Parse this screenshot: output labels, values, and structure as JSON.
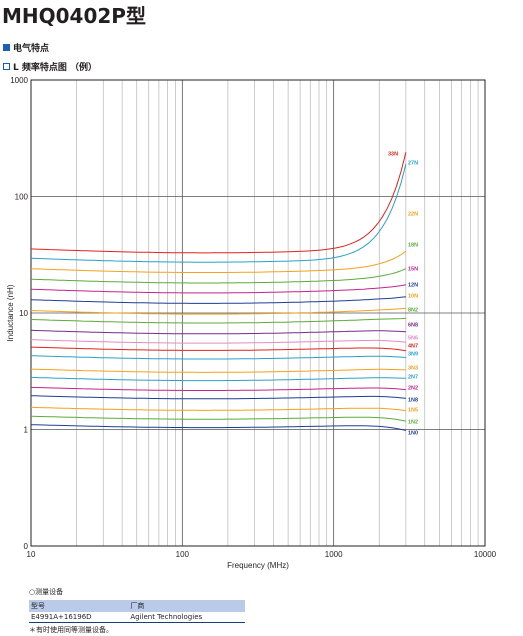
{
  "page": {
    "title": "MHQ0402P型",
    "section_electrical": "电气特点",
    "section_freq": "L 频率特点图 （例）"
  },
  "measurement": {
    "heading": "○测量设备",
    "col_model": "型号",
    "col_maker": "厂商",
    "model": "E4991A+16196D",
    "maker": "Agilent Technologies",
    "note": "＊有时使用同等测量设备。"
  },
  "chart_data": {
    "type": "line",
    "xlabel": "Frequency (MHz)",
    "ylabel": "Inductance (nH)",
    "xscale": "log",
    "yscale": "log",
    "xlim": [
      10,
      10000
    ],
    "ylim": [
      0,
      1000
    ],
    "xticks": [
      "10",
      "100",
      "1000",
      "10000"
    ],
    "yticks": [
      "0",
      "1",
      "10",
      "100",
      "1000"
    ],
    "grid": true,
    "series": [
      {
        "name": "1N0",
        "color": "#1e3f94",
        "base": 1.1,
        "srf": 10000,
        "end": 0.98
      },
      {
        "name": "1N2",
        "color": "#5aab3a",
        "base": 1.3,
        "srf": 10000,
        "end": 1.18
      },
      {
        "name": "1N5",
        "color": "#f2a21d",
        "base": 1.55,
        "srf": 10000,
        "end": 1.45
      },
      {
        "name": "1N8",
        "color": "#1e3f94",
        "base": 1.95,
        "srf": 10000,
        "end": 1.85
      },
      {
        "name": "2N2",
        "color": "#c4228e",
        "base": 2.3,
        "srf": 10000,
        "end": 2.2
      },
      {
        "name": "2N7",
        "color": "#2aa0c8",
        "base": 2.8,
        "srf": 10000,
        "end": 2.75
      },
      {
        "name": "3N3",
        "color": "#f2a21d",
        "base": 3.3,
        "srf": 10000,
        "end": 3.25
      },
      {
        "name": "3N9",
        "color": "#2aa0c8",
        "base": 4.3,
        "srf": 10000,
        "end": 4.15
      },
      {
        "name": "4N7",
        "color": "#e2231a",
        "base": 5.1,
        "srf": 10000,
        "end": 4.75
      },
      {
        "name": "5N6",
        "color": "#e68ac2",
        "base": 5.9,
        "srf": 10000,
        "end": 5.6
      },
      {
        "name": "6N8",
        "color": "#7a2a8c",
        "base": 7.1,
        "srf": 10000,
        "end": 6.9
      },
      {
        "name": "8N2",
        "color": "#5aab3a",
        "base": 8.8,
        "srf": 10000,
        "end": 9.0
      },
      {
        "name": "10N",
        "color": "#f2a21d",
        "base": 10.5,
        "srf": 10000,
        "end": 11.0
      },
      {
        "name": "12N",
        "color": "#1e3f94",
        "base": 13.0,
        "srf": 10000,
        "end": 13.8
      },
      {
        "name": "15N",
        "color": "#c4228e",
        "base": 16.0,
        "srf": 10000,
        "end": 17.5
      },
      {
        "name": "18N",
        "color": "#5aab3a",
        "base": 19.5,
        "srf": 10000,
        "end": 24.0
      },
      {
        "name": "22N",
        "color": "#f2a21d",
        "base": 24.0,
        "srf": 10000,
        "end": 34.0
      },
      {
        "name": "27N",
        "color": "#2aa0c8",
        "base": 29.5,
        "srf": 10000,
        "end": 190
      },
      {
        "name": "33N",
        "color": "#e2231a",
        "base": 35.5,
        "srf": 10000,
        "end": 240
      }
    ]
  }
}
